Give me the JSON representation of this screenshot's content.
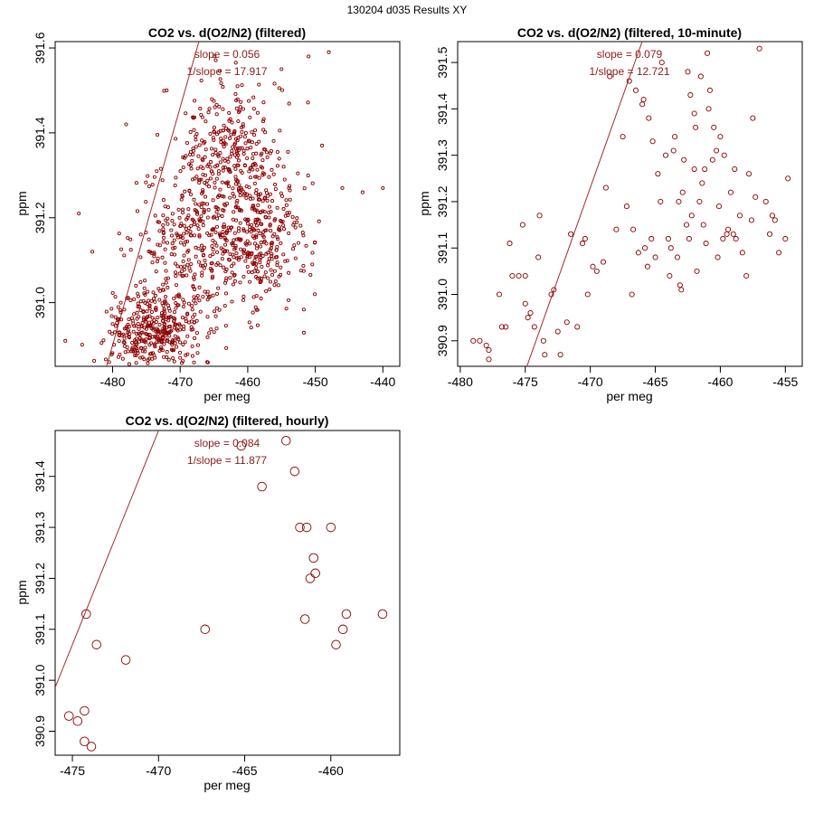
{
  "page": {
    "title": "130204   d035   Results XY"
  },
  "chart_data": [
    {
      "id": "filtered",
      "type": "scatter",
      "title": "CO2 vs. d(O2/N2) (filtered)",
      "xlabel": "per meg",
      "ylabel": "ppm",
      "xlim": [
        -488.5,
        -437.5
      ],
      "ylim": [
        390.85,
        391.615
      ],
      "xticks": [
        -480,
        -470,
        -460,
        -450,
        -440
      ],
      "yticks": [
        391.0,
        391.2,
        391.4,
        391.6
      ],
      "slope_label": "slope = 0.056",
      "inv_slope_label": "1/slope = 17.917",
      "fit": {
        "slope": 0.056,
        "intercept": 417.78
      },
      "marker_size": "small",
      "point_color": "#8b0000",
      "line_color": "#a52a2a",
      "generated_points": {
        "seed": 7,
        "clusters": [
          {
            "n": 380,
            "cx": -474,
            "cy": 390.93,
            "sx": 3.5,
            "sy": 0.05
          },
          {
            "n": 320,
            "cx": -468,
            "cy": 391.13,
            "sx": 4.5,
            "sy": 0.09
          },
          {
            "n": 300,
            "cx": -462,
            "cy": 391.35,
            "sx": 4.0,
            "sy": 0.09
          },
          {
            "n": 280,
            "cx": -458,
            "cy": 391.15,
            "sx": 3.5,
            "sy": 0.08
          }
        ]
      },
      "points": [
        {
          "x": -487,
          "y": 390.91
        },
        {
          "x": -485,
          "y": 391.21
        },
        {
          "x": -483,
          "y": 391.12
        },
        {
          "x": -478,
          "y": 391.42
        },
        {
          "x": -472,
          "y": 391.5
        },
        {
          "x": -455,
          "y": 391.55
        },
        {
          "x": -451,
          "y": 391.58
        },
        {
          "x": -448,
          "y": 391.59
        },
        {
          "x": -446,
          "y": 391.27
        },
        {
          "x": -443,
          "y": 391.26
        },
        {
          "x": -440,
          "y": 391.27
        },
        {
          "x": -449,
          "y": 391.37
        },
        {
          "x": -470,
          "y": 390.87
        },
        {
          "x": -466,
          "y": 390.86
        }
      ]
    },
    {
      "id": "ten_minute",
      "type": "scatter",
      "title": "CO2 vs. d(O2/N2) (filtered, 10-minute)",
      "xlabel": "per meg",
      "ylabel": "ppm",
      "xlim": [
        -480.2,
        -453.7
      ],
      "ylim": [
        390.845,
        391.545
      ],
      "xticks": [
        -480,
        -475,
        -470,
        -465,
        -460,
        -455
      ],
      "yticks": [
        390.9,
        391.0,
        391.1,
        391.2,
        391.3,
        391.4,
        391.5
      ],
      "slope_label": "slope = 0.079",
      "inv_slope_label": "1/slope = 12.721",
      "fit": {
        "slope": 0.079,
        "intercept": 428.36
      },
      "marker_size": "medium",
      "point_color": "#8b0000",
      "line_color": "#a52a2a",
      "points": [
        {
          "x": -479.0,
          "y": 390.9
        },
        {
          "x": -478.5,
          "y": 390.9
        },
        {
          "x": -478.0,
          "y": 390.89
        },
        {
          "x": -477.8,
          "y": 390.88
        },
        {
          "x": -477.8,
          "y": 390.86
        },
        {
          "x": -477.0,
          "y": 391.0
        },
        {
          "x": -476.8,
          "y": 390.93
        },
        {
          "x": -476.5,
          "y": 390.93
        },
        {
          "x": -476.2,
          "y": 391.11
        },
        {
          "x": -475.5,
          "y": 391.04
        },
        {
          "x": -475.2,
          "y": 391.15
        },
        {
          "x": -475.0,
          "y": 391.04
        },
        {
          "x": -475.0,
          "y": 390.98
        },
        {
          "x": -474.8,
          "y": 390.95
        },
        {
          "x": -474.3,
          "y": 390.93
        },
        {
          "x": -474.0,
          "y": 391.08
        },
        {
          "x": -473.9,
          "y": 391.17
        },
        {
          "x": -473.6,
          "y": 390.9
        },
        {
          "x": -473.5,
          "y": 390.87
        },
        {
          "x": -473.0,
          "y": 391.0
        },
        {
          "x": -472.5,
          "y": 390.92
        },
        {
          "x": -472.3,
          "y": 390.87
        },
        {
          "x": -471.8,
          "y": 390.94
        },
        {
          "x": -471.0,
          "y": 390.93
        },
        {
          "x": -470.6,
          "y": 391.11
        },
        {
          "x": -470.4,
          "y": 391.12
        },
        {
          "x": -470.2,
          "y": 391.0
        },
        {
          "x": -469.5,
          "y": 391.05
        },
        {
          "x": -469.0,
          "y": 391.07
        },
        {
          "x": -468.8,
          "y": 391.23
        },
        {
          "x": -468.5,
          "y": 391.47
        },
        {
          "x": -467.5,
          "y": 391.34
        },
        {
          "x": -467.2,
          "y": 391.19
        },
        {
          "x": -467.0,
          "y": 391.46
        },
        {
          "x": -466.5,
          "y": 391.44
        },
        {
          "x": -466.0,
          "y": 391.41
        },
        {
          "x": -465.8,
          "y": 391.1
        },
        {
          "x": -465.5,
          "y": 391.38
        },
        {
          "x": -465.2,
          "y": 391.33
        },
        {
          "x": -465.0,
          "y": 391.08
        },
        {
          "x": -464.5,
          "y": 391.5
        },
        {
          "x": -464.0,
          "y": 391.12
        },
        {
          "x": -463.8,
          "y": 391.1
        },
        {
          "x": -463.5,
          "y": 391.34
        },
        {
          "x": -463.2,
          "y": 391.2
        },
        {
          "x": -463.0,
          "y": 391.01
        },
        {
          "x": -462.8,
          "y": 391.29
        },
        {
          "x": -462.5,
          "y": 391.48
        },
        {
          "x": -462.3,
          "y": 391.43
        },
        {
          "x": -462.0,
          "y": 391.39
        },
        {
          "x": -461.8,
          "y": 391.05
        },
        {
          "x": -461.5,
          "y": 391.47
        },
        {
          "x": -461.3,
          "y": 391.15
        },
        {
          "x": -461.0,
          "y": 391.52
        },
        {
          "x": -460.8,
          "y": 391.44
        },
        {
          "x": -460.5,
          "y": 391.36
        },
        {
          "x": -460.3,
          "y": 391.31
        },
        {
          "x": -460.0,
          "y": 391.34
        },
        {
          "x": -459.8,
          "y": 391.12
        },
        {
          "x": -459.5,
          "y": 391.13
        },
        {
          "x": -459.0,
          "y": 391.13
        },
        {
          "x": -458.8,
          "y": 391.12
        },
        {
          "x": -458.5,
          "y": 391.17
        },
        {
          "x": -458.0,
          "y": 391.04
        },
        {
          "x": -457.8,
          "y": 391.26
        },
        {
          "x": -457.5,
          "y": 391.38
        },
        {
          "x": -457.3,
          "y": 391.21
        },
        {
          "x": -457.0,
          "y": 391.53
        },
        {
          "x": -456.5,
          "y": 391.2
        },
        {
          "x": -456.2,
          "y": 391.13
        },
        {
          "x": -456.0,
          "y": 391.17
        },
        {
          "x": -455.5,
          "y": 391.09
        },
        {
          "x": -455.0,
          "y": 391.12
        },
        {
          "x": -454.8,
          "y": 391.25
        },
        {
          "x": -462.0,
          "y": 391.27
        },
        {
          "x": -461.2,
          "y": 391.27
        },
        {
          "x": -460.6,
          "y": 391.29
        },
        {
          "x": -463.6,
          "y": 391.31
        },
        {
          "x": -464.8,
          "y": 391.26
        },
        {
          "x": -466.8,
          "y": 391.0
        },
        {
          "x": -465.3,
          "y": 391.12
        },
        {
          "x": -459.2,
          "y": 391.22
        },
        {
          "x": -462.6,
          "y": 391.15
        },
        {
          "x": -460.9,
          "y": 391.4
        },
        {
          "x": -463.9,
          "y": 391.04
        },
        {
          "x": -471.5,
          "y": 391.13
        },
        {
          "x": -472.8,
          "y": 391.01
        },
        {
          "x": -458.3,
          "y": 391.09
        },
        {
          "x": -461.6,
          "y": 391.2
        },
        {
          "x": -462.9,
          "y": 391.22
        },
        {
          "x": -464.2,
          "y": 391.3
        },
        {
          "x": -465.9,
          "y": 391.42
        },
        {
          "x": -466.3,
          "y": 391.09
        },
        {
          "x": -457.6,
          "y": 391.16
        },
        {
          "x": -459.7,
          "y": 391.3
        },
        {
          "x": -461.9,
          "y": 391.36
        },
        {
          "x": -462.2,
          "y": 391.17
        },
        {
          "x": -460.2,
          "y": 391.08
        },
        {
          "x": -463.3,
          "y": 391.08
        },
        {
          "x": -455.8,
          "y": 391.16
        },
        {
          "x": -468.0,
          "y": 391.14
        },
        {
          "x": -469.8,
          "y": 391.06
        },
        {
          "x": -474.6,
          "y": 390.96
        },
        {
          "x": -476.0,
          "y": 391.04
        },
        {
          "x": -461.4,
          "y": 391.24
        },
        {
          "x": -460.1,
          "y": 391.19
        },
        {
          "x": -458.9,
          "y": 391.27
        },
        {
          "x": -464.6,
          "y": 391.2
        },
        {
          "x": -466.7,
          "y": 391.14
        },
        {
          "x": -459.4,
          "y": 391.14
        },
        {
          "x": -462.4,
          "y": 391.12
        },
        {
          "x": -461.1,
          "y": 391.11
        },
        {
          "x": -463.1,
          "y": 391.02
        },
        {
          "x": -465.6,
          "y": 391.06
        }
      ]
    },
    {
      "id": "hourly",
      "type": "scatter",
      "title": "CO2 vs. d(O2/N2) (filtered, hourly)",
      "xlabel": "per meg",
      "ylabel": "ppm",
      "xlim": [
        -476.0,
        -456.0
      ],
      "ylim": [
        390.853,
        391.49
      ],
      "xticks": [
        -475,
        -470,
        -465,
        -460
      ],
      "yticks": [
        390.9,
        391.0,
        391.1,
        391.2,
        391.3,
        391.4
      ],
      "slope_label": "slope = 0.084",
      "inv_slope_label": "1/slope = 11.877",
      "fit": {
        "slope": 0.084,
        "intercept": 430.97
      },
      "marker_size": "large",
      "point_color": "#8b0000",
      "line_color": "#a52a2a",
      "points": [
        {
          "x": -475.2,
          "y": 390.93
        },
        {
          "x": -474.7,
          "y": 390.92
        },
        {
          "x": -474.3,
          "y": 390.94
        },
        {
          "x": -474.3,
          "y": 390.88
        },
        {
          "x": -473.9,
          "y": 390.87
        },
        {
          "x": -474.2,
          "y": 391.13
        },
        {
          "x": -473.6,
          "y": 391.07
        },
        {
          "x": -471.9,
          "y": 391.04
        },
        {
          "x": -467.3,
          "y": 391.1
        },
        {
          "x": -465.2,
          "y": 391.46
        },
        {
          "x": -464.0,
          "y": 391.38
        },
        {
          "x": -462.6,
          "y": 391.47
        },
        {
          "x": -462.1,
          "y": 391.41
        },
        {
          "x": -461.8,
          "y": 391.3
        },
        {
          "x": -461.4,
          "y": 391.3
        },
        {
          "x": -461.0,
          "y": 391.24
        },
        {
          "x": -460.9,
          "y": 391.21
        },
        {
          "x": -461.2,
          "y": 391.2
        },
        {
          "x": -461.5,
          "y": 391.12
        },
        {
          "x": -460.0,
          "y": 391.3
        },
        {
          "x": -459.7,
          "y": 391.07
        },
        {
          "x": -459.3,
          "y": 391.1
        },
        {
          "x": -459.1,
          "y": 391.13
        },
        {
          "x": -457.0,
          "y": 391.13
        }
      ]
    }
  ]
}
